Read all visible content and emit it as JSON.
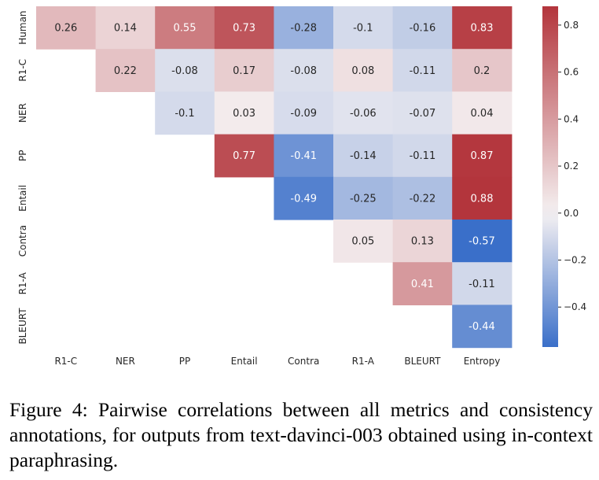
{
  "chart_data": {
    "type": "heatmap",
    "row_labels": [
      "Human",
      "R1-C",
      "NER",
      "PP",
      "Entail",
      "Contra",
      "R1-A",
      "BLEURT"
    ],
    "col_labels": [
      "R1-C",
      "NER",
      "PP",
      "Entail",
      "Contra",
      "R1-A",
      "BLEURT",
      "Entropy"
    ],
    "values": [
      [
        0.26,
        0.14,
        0.55,
        0.73,
        -0.28,
        -0.1,
        -0.16,
        0.83
      ],
      [
        null,
        0.22,
        -0.08,
        0.17,
        -0.08,
        0.08,
        -0.11,
        0.2
      ],
      [
        null,
        null,
        -0.1,
        0.03,
        -0.09,
        -0.06,
        -0.07,
        0.04
      ],
      [
        null,
        null,
        null,
        0.77,
        -0.41,
        -0.14,
        -0.11,
        0.87
      ],
      [
        null,
        null,
        null,
        null,
        -0.49,
        -0.25,
        -0.22,
        0.88
      ],
      [
        null,
        null,
        null,
        null,
        null,
        0.05,
        0.13,
        -0.57
      ],
      [
        null,
        null,
        null,
        null,
        null,
        null,
        0.41,
        -0.11
      ],
      [
        null,
        null,
        null,
        null,
        null,
        null,
        null,
        -0.44
      ]
    ],
    "colorbar": {
      "vmin": -0.57,
      "vmax": 0.88,
      "ticks": [
        0.8,
        0.6,
        0.4,
        0.2,
        0.0,
        -0.2,
        -0.4
      ],
      "tick_labels": [
        "0.8",
        "0.6",
        "0.4",
        "0.2",
        "0.0",
        "−0.2",
        "−0.4"
      ]
    },
    "colormap": {
      "low": "#3a6fc9",
      "mid": "#f5f1f2",
      "high": "#b3353c"
    },
    "grid": false
  },
  "caption": "Figure 4: Pairwise correlations between all metrics and consistency annotations, for outputs from text-davinci-003 obtained using in-context paraphrasing."
}
